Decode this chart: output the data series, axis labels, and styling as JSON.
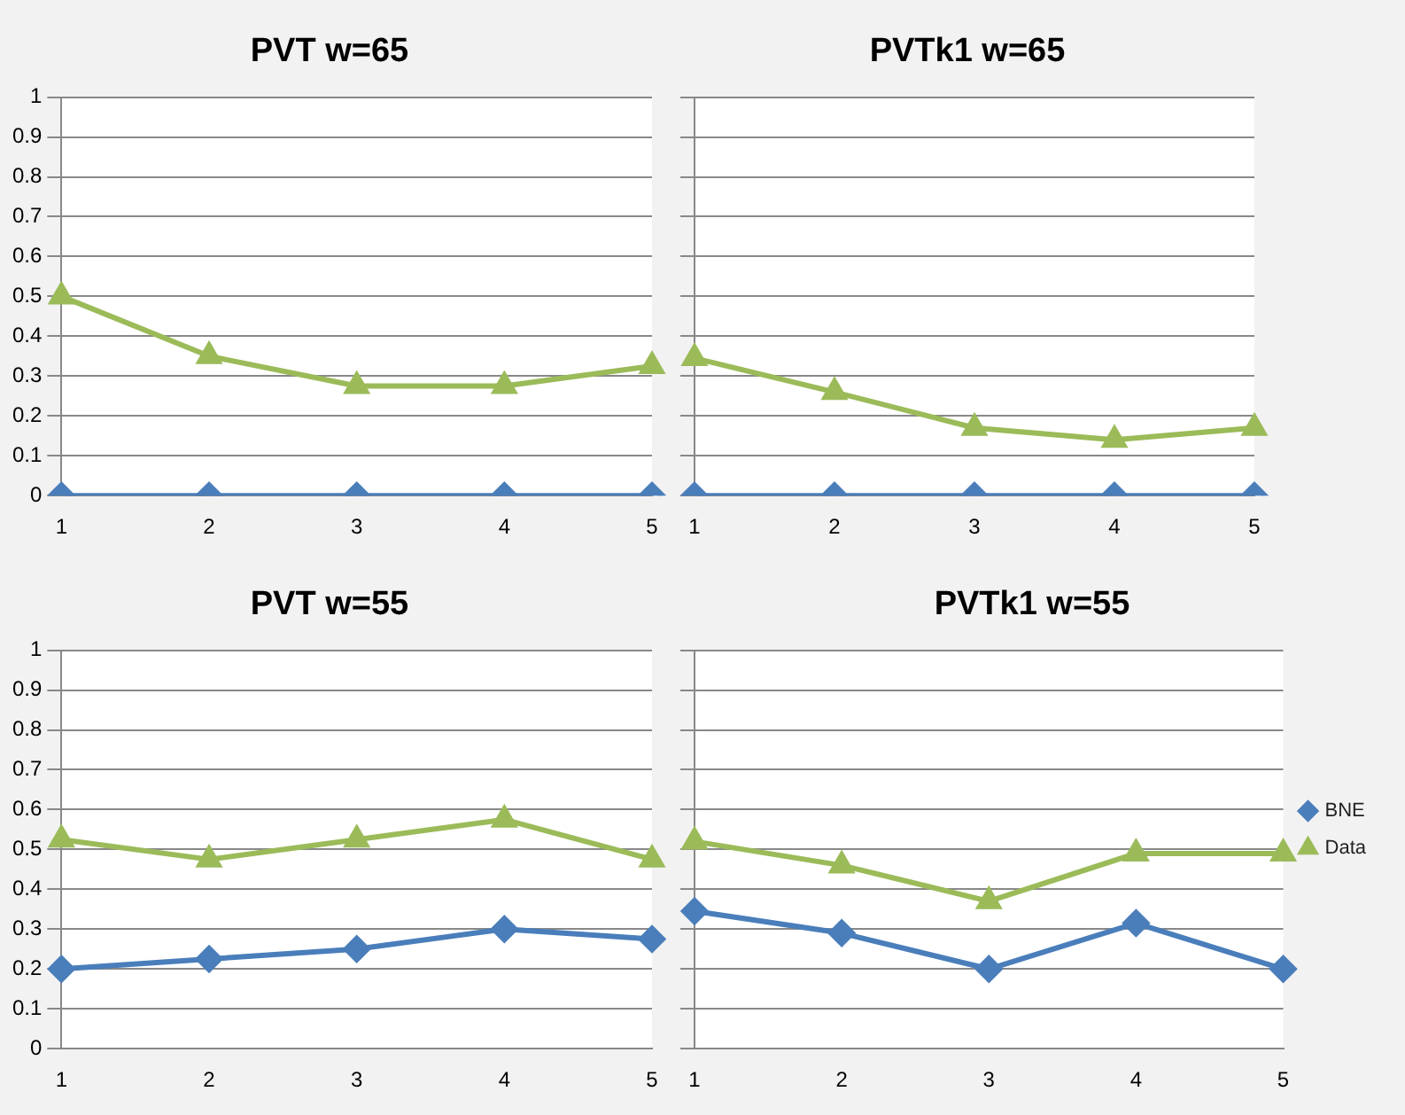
{
  "chart_data": [
    {
      "type": "line",
      "title": "PVT w=65",
      "categories": [
        "1",
        "2",
        "3",
        "4",
        "5"
      ],
      "ylim": [
        0,
        1
      ],
      "yticks": [
        0,
        0.1,
        0.2,
        0.3,
        0.4,
        0.5,
        0.6,
        0.7,
        0.8,
        0.9,
        1
      ],
      "grid": "y",
      "legend": false,
      "series": [
        {
          "color": "#4a7ebb",
          "marker": "diamond",
          "values": [
            0,
            0,
            0,
            0,
            0
          ]
        },
        {
          "color": "#9bbb59",
          "marker": "triangle",
          "values": [
            0.5,
            0.35,
            0.275,
            0.275,
            0.325
          ]
        }
      ]
    },
    {
      "type": "line",
      "title": "PVTk1 w=65",
      "categories": [
        "1",
        "2",
        "3",
        "4",
        "5"
      ],
      "ylim": [
        0,
        1
      ],
      "yticks": [
        0,
        0.1,
        0.2,
        0.3,
        0.4,
        0.5,
        0.6,
        0.7,
        0.8,
        0.9,
        1
      ],
      "grid": "y",
      "legend": false,
      "tick_labels": "x",
      "series": [
        {
          "color": "#4a7ebb",
          "marker": "diamond",
          "values": [
            0,
            0,
            0,
            0,
            0
          ]
        },
        {
          "color": "#9bbb59",
          "marker": "triangle",
          "values": [
            0.345,
            0.26,
            0.17,
            0.14,
            0.17
          ]
        }
      ]
    },
    {
      "type": "line",
      "title": "PVT w=55",
      "categories": [
        "1",
        "2",
        "3",
        "4",
        "5"
      ],
      "ylim": [
        0,
        1
      ],
      "yticks": [
        0,
        0.1,
        0.2,
        0.3,
        0.4,
        0.5,
        0.6,
        0.7,
        0.8,
        0.9,
        1
      ],
      "grid": "y",
      "legend": false,
      "series": [
        {
          "color": "#4a7ebb",
          "marker": "diamond",
          "values": [
            0.2,
            0.225,
            0.25,
            0.3,
            0.275
          ]
        },
        {
          "color": "#9bbb59",
          "marker": "triangle",
          "values": [
            0.525,
            0.475,
            0.525,
            0.575,
            0.475
          ]
        }
      ]
    },
    {
      "type": "line",
      "title": "PVTk1 w=55",
      "categories": [
        "1",
        "2",
        "3",
        "4",
        "5"
      ],
      "ylim": [
        0,
        1
      ],
      "yticks": [
        0,
        0.1,
        0.2,
        0.3,
        0.4,
        0.5,
        0.6,
        0.7,
        0.8,
        0.9,
        1
      ],
      "grid": "y",
      "legend": "right",
      "tick_labels": "x",
      "series": [
        {
          "name": "BNE",
          "color": "#4a7ebb",
          "marker": "diamond",
          "values": [
            0.345,
            0.29,
            0.2,
            0.315,
            0.2
          ]
        },
        {
          "name": "Data",
          "color": "#9bbb59",
          "marker": "triangle",
          "values": [
            0.52,
            0.46,
            0.37,
            0.49,
            0.49
          ]
        }
      ]
    }
  ]
}
